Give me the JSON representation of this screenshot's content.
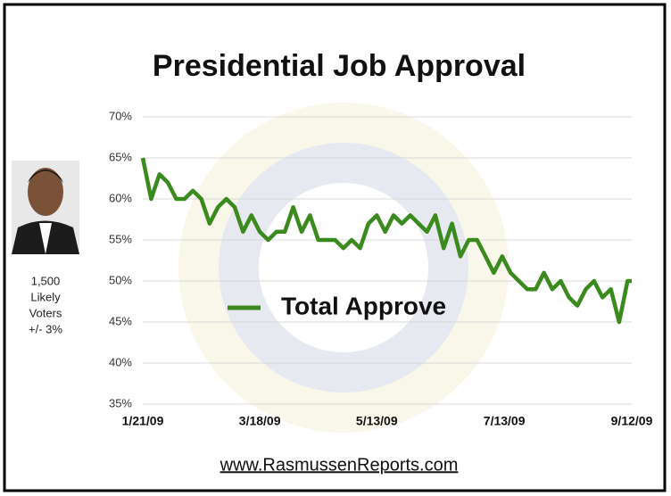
{
  "chart_data": {
    "type": "line",
    "title": "Presidential Job Approval",
    "footer": "www.RasmussenReports.com",
    "side_note": [
      "1,500",
      "Likely",
      "Voters",
      "+/- 3%"
    ],
    "legend": "inside-center",
    "grid": true,
    "x": [
      "1/21/09",
      "1/25/09",
      "1/29/09",
      "2/2/09",
      "2/6/09",
      "2/10/09",
      "2/14/09",
      "2/18/09",
      "2/22/09",
      "2/26/09",
      "3/2/09",
      "3/6/09",
      "3/10/09",
      "3/14/09",
      "3/18/09",
      "3/22/09",
      "3/26/09",
      "3/30/09",
      "4/3/09",
      "4/7/09",
      "4/11/09",
      "4/15/09",
      "4/19/09",
      "4/23/09",
      "4/27/09",
      "5/1/09",
      "5/5/09",
      "5/9/09",
      "5/13/09",
      "5/17/09",
      "5/21/09",
      "5/25/09",
      "5/29/09",
      "6/2/09",
      "6/6/09",
      "6/10/09",
      "6/14/09",
      "6/18/09",
      "6/22/09",
      "6/26/09",
      "6/30/09",
      "7/4/09",
      "7/8/09",
      "7/12/09",
      "7/16/09",
      "7/20/09",
      "7/24/09",
      "7/28/09",
      "8/1/09",
      "8/5/09",
      "8/9/09",
      "8/13/09",
      "8/17/09",
      "8/21/09",
      "8/25/09",
      "8/29/09",
      "9/2/09",
      "9/6/09",
      "9/10/09",
      "9/12/09"
    ],
    "series": [
      {
        "name": "Total Approve",
        "color": "#3a8a1e",
        "values": [
          65,
          60,
          63,
          62,
          60,
          60,
          61,
          60,
          57,
          59,
          60,
          59,
          56,
          58,
          56,
          55,
          56,
          56,
          59,
          56,
          58,
          55,
          55,
          55,
          54,
          55,
          54,
          57,
          58,
          56,
          58,
          57,
          58,
          57,
          56,
          58,
          54,
          57,
          53,
          55,
          55,
          53,
          51,
          53,
          51,
          50,
          49,
          49,
          51,
          49,
          50,
          48,
          47,
          49,
          50,
          48,
          49,
          45,
          50,
          50
        ]
      }
    ],
    "xlim": [
      "1/21/09",
      "9/12/09"
    ],
    "xticks": [
      "1/21/09",
      "3/18/09",
      "5/13/09",
      "7/13/09",
      "9/12/09"
    ],
    "ylim": [
      35,
      70
    ],
    "yticks": [
      {
        "value": 35,
        "label": "35%"
      },
      {
        "value": 40,
        "label": "40%"
      },
      {
        "value": 45,
        "label": "45%"
      },
      {
        "value": 50,
        "label": "50%"
      },
      {
        "value": 55,
        "label": "55%"
      },
      {
        "value": 60,
        "label": "60%"
      },
      {
        "value": 65,
        "label": "65%"
      },
      {
        "value": 70,
        "label": "70%"
      }
    ]
  }
}
